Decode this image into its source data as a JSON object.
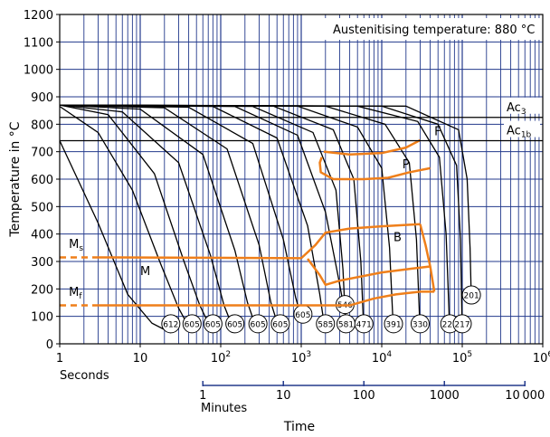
{
  "chart_data": {
    "type": "line",
    "title": "",
    "xlabel": "Time",
    "ylabel": "Temperature in °C",
    "x_scale": "log",
    "x_unit_label": "Seconds",
    "x2_unit_label": "Minutes",
    "xlim": [
      1,
      1000000
    ],
    "ylim": [
      0,
      1200
    ],
    "grid": true,
    "y_ticks": [
      0,
      100,
      200,
      300,
      400,
      500,
      600,
      700,
      800,
      900,
      1000,
      1100,
      1200
    ],
    "x_tick_labels": [
      {
        "label": "1",
        "value": 1
      },
      {
        "label": "10",
        "value": 10
      },
      {
        "label": "10",
        "sup": "2",
        "value": 100
      },
      {
        "label": "10",
        "sup": "3",
        "value": 1000
      },
      {
        "label": "10",
        "sup": "4",
        "value": 10000
      },
      {
        "label": "10",
        "sup": "5",
        "value": 100000
      },
      {
        "label": "10",
        "sup": "6",
        "value": 1000000
      }
    ],
    "minutes_tick_labels": [
      {
        "label": "1",
        "value": 1
      },
      {
        "label": "10",
        "value": 10
      },
      {
        "label": "100",
        "value": 100
      },
      {
        "label": "1000",
        "value": 1000
      },
      {
        "label": "10 000",
        "value": 10000
      }
    ],
    "annotation_box": "Austenitising temperature: 880 °C",
    "horizontal_lines": [
      {
        "label": "Ac",
        "sub": "3",
        "y": 825
      },
      {
        "label": "Ac",
        "sub": "1b",
        "y": 740
      }
    ],
    "phase_labels": [
      {
        "label": "F",
        "x": 45000,
        "y": 760
      },
      {
        "label": "P",
        "x": 18000,
        "y": 640
      },
      {
        "label": "B",
        "x": 14000,
        "y": 375
      },
      {
        "label": "M",
        "x": 10,
        "y": 250
      },
      {
        "label": "M",
        "sub": "s",
        "x": 1.3,
        "y": 350
      },
      {
        "label": "M",
        "sub": "f",
        "x": 1.3,
        "y": 175
      }
    ],
    "ms_temperature": 315,
    "mf_temperature": 140,
    "cooling_curves": [
      {
        "hardness": "612",
        "label_x": 24,
        "label_y": 40,
        "points": [
          [
            1,
            740
          ],
          [
            3,
            440
          ],
          [
            7,
            180
          ],
          [
            14,
            75
          ],
          [
            24,
            40
          ]
        ]
      },
      {
        "hardness": "605",
        "label_x": 44,
        "label_y": 40,
        "points": [
          [
            1,
            865
          ],
          [
            3,
            770
          ],
          [
            8,
            560
          ],
          [
            18,
            290
          ],
          [
            30,
            130
          ],
          [
            44,
            40
          ]
        ]
      },
      {
        "hardness": "605",
        "label_x": 80,
        "label_y": 40,
        "points": [
          [
            1,
            870
          ],
          [
            4,
            835
          ],
          [
            15,
            620
          ],
          [
            35,
            300
          ],
          [
            55,
            140
          ],
          [
            80,
            40
          ]
        ]
      },
      {
        "hardness": "605",
        "label_x": 150,
        "label_y": 40,
        "points": [
          [
            1,
            870
          ],
          [
            6,
            845
          ],
          [
            30,
            660
          ],
          [
            75,
            320
          ],
          [
            110,
            140
          ],
          [
            150,
            40
          ]
        ]
      },
      {
        "hardness": "605",
        "label_x": 290,
        "label_y": 40,
        "points": [
          [
            1,
            870
          ],
          [
            10,
            855
          ],
          [
            60,
            690
          ],
          [
            150,
            340
          ],
          [
            215,
            150
          ],
          [
            290,
            40
          ]
        ]
      },
      {
        "hardness": "605",
        "label_x": 550,
        "label_y": 40,
        "points": [
          [
            1,
            870
          ],
          [
            20,
            860
          ],
          [
            120,
            710
          ],
          [
            300,
            360
          ],
          [
            420,
            150
          ],
          [
            550,
            40
          ]
        ]
      },
      {
        "hardness": "605",
        "label_x": 1050,
        "label_y": 75,
        "points": [
          [
            1,
            870
          ],
          [
            40,
            862
          ],
          [
            250,
            730
          ],
          [
            600,
            380
          ],
          [
            850,
            170
          ],
          [
            1050,
            75
          ]
        ]
      },
      {
        "hardness": "585",
        "label_x": 2000,
        "label_y": 40,
        "points": [
          [
            1,
            870
          ],
          [
            80,
            865
          ],
          [
            500,
            750
          ],
          [
            1200,
            430
          ],
          [
            1700,
            180
          ],
          [
            2000,
            40
          ]
        ]
      },
      {
        "hardness": "546",
        "label_x": 3500,
        "label_y": 110,
        "points": [
          [
            1,
            870
          ],
          [
            150,
            865
          ],
          [
            900,
            760
          ],
          [
            2000,
            480
          ],
          [
            2900,
            240
          ],
          [
            3500,
            110
          ]
        ]
      },
      {
        "hardness": "581",
        "label_x": 3600,
        "label_y": 40,
        "points": [
          [
            1,
            870
          ],
          [
            250,
            865
          ],
          [
            1400,
            770
          ],
          [
            2700,
            560
          ],
          [
            3300,
            270
          ],
          [
            3600,
            40
          ]
        ]
      },
      {
        "hardness": "471",
        "label_x": 6000,
        "label_y": 40,
        "points": [
          [
            1,
            870
          ],
          [
            450,
            866
          ],
          [
            2500,
            780
          ],
          [
            4500,
            600
          ],
          [
            5500,
            300
          ],
          [
            6000,
            40
          ]
        ]
      },
      {
        "hardness": "391",
        "label_x": 14000,
        "label_y": 40,
        "points": [
          [
            1,
            870
          ],
          [
            900,
            866
          ],
          [
            5000,
            790
          ],
          [
            10000,
            640
          ],
          [
            12500,
            350
          ],
          [
            14000,
            40
          ]
        ]
      },
      {
        "hardness": "330",
        "label_x": 30000,
        "label_y": 40,
        "points": [
          [
            1,
            870
          ],
          [
            2000,
            866
          ],
          [
            11000,
            800
          ],
          [
            22000,
            660
          ],
          [
            27000,
            380
          ],
          [
            30000,
            40
          ]
        ]
      },
      {
        "hardness": "227",
        "label_x": 70000,
        "label_y": 40,
        "points": [
          [
            1,
            870
          ],
          [
            5000,
            866
          ],
          [
            28000,
            810
          ],
          [
            52000,
            680
          ],
          [
            63000,
            400
          ],
          [
            70000,
            40
          ]
        ]
      },
      {
        "hardness": "217",
        "label_x": 100000,
        "label_y": 40,
        "points": [
          [
            1,
            870
          ],
          [
            10000,
            866
          ],
          [
            50000,
            800
          ],
          [
            85000,
            650
          ],
          [
            95000,
            380
          ],
          [
            100000,
            40
          ]
        ]
      },
      {
        "hardness": "201",
        "label_x": 130000,
        "label_y": 145,
        "points": [
          [
            1,
            870
          ],
          [
            20000,
            866
          ],
          [
            90000,
            780
          ],
          [
            115000,
            600
          ],
          [
            125000,
            350
          ],
          [
            130000,
            145
          ]
        ]
      }
    ],
    "transformation_lines": [
      {
        "name": "ferrite-start",
        "points": [
          [
            1900,
            700
          ],
          [
            4000,
            690
          ],
          [
            10000,
            695
          ],
          [
            20000,
            715
          ],
          [
            30000,
            742
          ]
        ]
      },
      {
        "name": "pearlite-start",
        "points": [
          [
            1800,
            680
          ],
          [
            1700,
            660
          ],
          [
            1750,
            625
          ],
          [
            2500,
            600
          ],
          [
            6000,
            600
          ],
          [
            12000,
            605
          ],
          [
            22000,
            625
          ],
          [
            40000,
            640
          ]
        ]
      },
      {
        "name": "bainite-start",
        "points": [
          [
            1000,
            312
          ],
          [
            1500,
            360
          ],
          [
            2000,
            405
          ],
          [
            4000,
            420
          ],
          [
            10000,
            428
          ],
          [
            30000,
            436
          ]
        ]
      },
      {
        "name": "bainite-end",
        "points": [
          [
            1200,
            310
          ],
          [
            1700,
            250
          ],
          [
            2000,
            215
          ],
          [
            3000,
            230
          ],
          [
            10000,
            260
          ],
          [
            25000,
            275
          ],
          [
            40000,
            282
          ]
        ]
      },
      {
        "name": "bainite-right-boundary",
        "points": [
          [
            30000,
            436
          ],
          [
            35000,
            360
          ],
          [
            40000,
            282
          ],
          [
            45000,
            190
          ]
        ]
      },
      {
        "name": "lower-bainite",
        "points": [
          [
            4000,
            140
          ],
          [
            8000,
            165
          ],
          [
            15000,
            180
          ],
          [
            30000,
            190
          ],
          [
            45000,
            190
          ]
        ]
      },
      {
        "name": "ms-line",
        "points": [
          [
            1,
            315
          ],
          [
            1000,
            312
          ]
        ],
        "dashed_until": 3
      },
      {
        "name": "mf-line",
        "points": [
          [
            1,
            140
          ],
          [
            4000,
            140
          ]
        ],
        "dashed_until": 3
      }
    ]
  }
}
